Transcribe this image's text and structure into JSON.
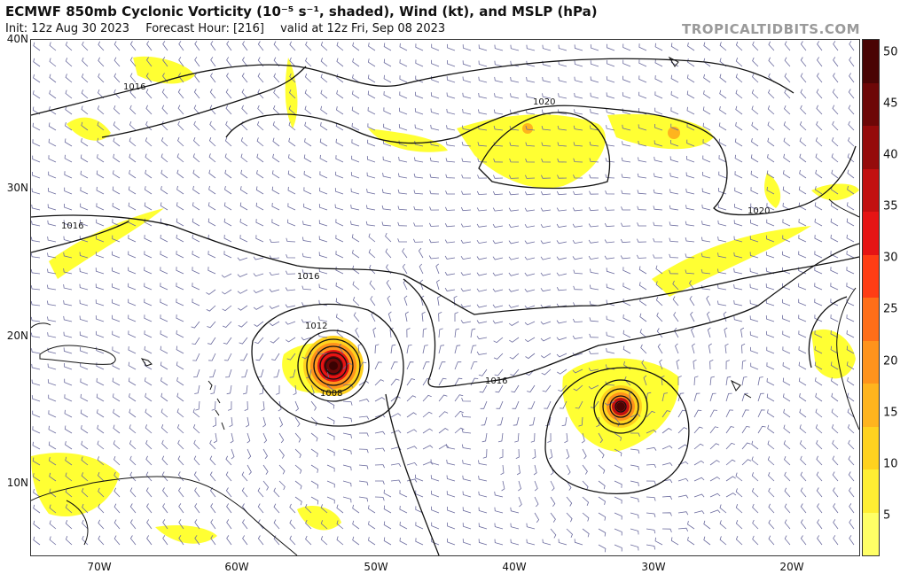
{
  "title": "ECMWF 850mb Cyclonic Vorticity (10⁻⁵ s⁻¹, shaded), Wind (kt), and MSLP (hPa)",
  "init": "Init: 12z Aug 30 2023",
  "forecast_hour": "Forecast Hour: [216]",
  "valid": "valid at 12z Fri, Sep 08 2023",
  "brand": "TROPICALTIDBITS.COM",
  "lat_labels": [
    "40N",
    "30N",
    "20N",
    "10N"
  ],
  "lon_labels": [
    "70W",
    "60W",
    "50W",
    "40W",
    "30W",
    "20W"
  ],
  "colorbar": {
    "ticks": [
      "50",
      "45",
      "40",
      "35",
      "30",
      "25",
      "20",
      "15",
      "10",
      "5"
    ],
    "colors": [
      "#ffff66",
      "#ffee33",
      "#ffd21f",
      "#ffb41e",
      "#ff931c",
      "#ff6e18",
      "#ff3d14",
      "#e61414",
      "#c21010",
      "#950b0b",
      "#6d0707",
      "#4a0404"
    ]
  },
  "isobar_labels": [
    "1016",
    "1016",
    "1016",
    "1016",
    "1020",
    "1020",
    "1012",
    "1008"
  ],
  "systems": [
    {
      "name": "west-cyclone",
      "lon": -53,
      "lat": 18,
      "min_pressure_label": "1008"
    },
    {
      "name": "east-cyclone",
      "lon": -32,
      "lat": 15
    }
  ]
}
